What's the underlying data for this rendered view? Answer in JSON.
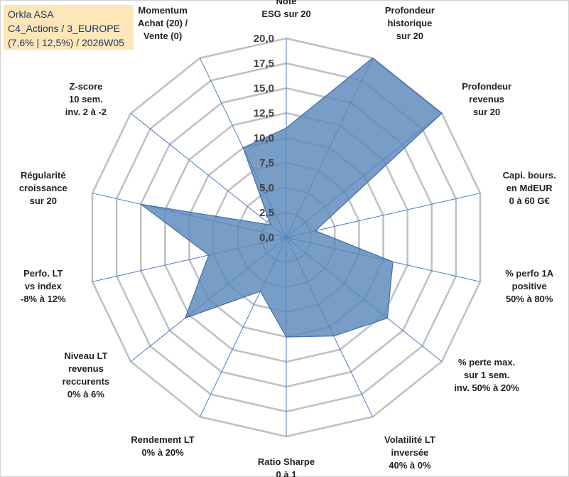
{
  "title_box": {
    "line1": "Orkla ASA",
    "line2": "C4_Actions / 3_EUROPE",
    "line3": "(7,6% | 12,5%) / 2026W05"
  },
  "colors": {
    "fill": "#5a87bb",
    "stroke": "#3f6fa8",
    "grid": "#bfbfbf",
    "spoke": "#4a7cc4",
    "title_bg": "#fde6b8"
  },
  "chart_data": {
    "type": "radar",
    "rmin": 0,
    "rmax": 20,
    "tick_values": [
      0,
      2.5,
      5,
      7.5,
      10,
      12.5,
      15,
      17.5,
      20
    ],
    "tick_labels": [
      "0,0",
      "2,5",
      "5,0",
      "7,5",
      "10,0",
      "12,5",
      "15,0",
      "17,5",
      "20,0"
    ],
    "axes": [
      [
        "Note",
        "ESG sur 20"
      ],
      [
        "Profondeur",
        "historique",
        "sur 20"
      ],
      [
        "Profondeur",
        "revenus",
        "sur 20"
      ],
      [
        "Capi. bours.",
        "en MdEUR",
        "0 à 60 G€"
      ],
      [
        "% perfo 1A",
        "positive",
        "50% à 80%"
      ],
      [
        "% perte max.",
        "sur 1 sem.",
        "inv. 50% à 20%"
      ],
      [
        "Volatilité LT",
        "inversée",
        "40% à 0%"
      ],
      [
        "Ratio Sharpe",
        "0 à 1"
      ],
      [
        "Rendement LT",
        "0% à 20%"
      ],
      [
        "Niveau LT",
        "revenus",
        "reccurents",
        "0% à 6%"
      ],
      [
        "Perfo. LT",
        "vs index",
        "-8% à 12%"
      ],
      [
        "Régularité",
        "croissance",
        "sur 20"
      ],
      [
        "Z-score",
        "10 sem.",
        "inv. 2 à -2"
      ],
      [
        "Momentum",
        "Achat (20) /",
        "Vente (0)"
      ]
    ],
    "series": [
      {
        "name": "Orkla ASA",
        "values": [
          11,
          20,
          20,
          3,
          11,
          13,
          11,
          10,
          6,
          13,
          8,
          15,
          2,
          10
        ]
      }
    ]
  }
}
